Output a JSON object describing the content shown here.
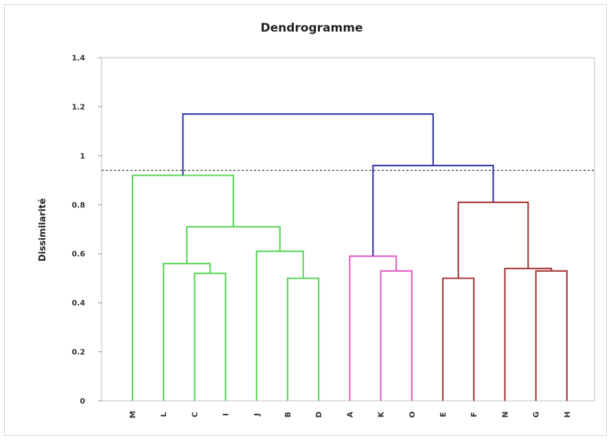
{
  "chart_data": {
    "type": "dendrogram",
    "title": "Dendrogramme",
    "ylabel": "Dissimilarité",
    "xlabel": "",
    "ylim": [
      0,
      1.4
    ],
    "yticks": [
      "0",
      "0.2",
      "0.4",
      "0.6",
      "0.8",
      "1",
      "1.2",
      "1.4"
    ],
    "grid": false,
    "leaves": [
      "M",
      "L",
      "C",
      "I",
      "J",
      "B",
      "D",
      "A",
      "K",
      "O",
      "E",
      "F",
      "N",
      "G",
      "H"
    ],
    "cut_height": 0.94,
    "colors": {
      "cluster_1": "#5ad65a",
      "cluster_2": "#e060c8",
      "cluster_3": "#a83a3a",
      "top": "#3a3aa8"
    },
    "merges": [
      {
        "left": "C",
        "right": "I",
        "height": 0.52,
        "color": "cluster_1"
      },
      {
        "left": "B",
        "right": "D",
        "height": 0.5,
        "color": "cluster_1"
      },
      {
        "left": "L",
        "right": "C+I",
        "height": 0.56,
        "color": "cluster_1"
      },
      {
        "left": "J",
        "right": "B+D",
        "height": 0.61,
        "color": "cluster_1"
      },
      {
        "left": "L+C+I",
        "right": "J+B+D",
        "height": 0.71,
        "color": "cluster_1"
      },
      {
        "left": "M",
        "right": "L+C+I+J+B+D",
        "height": 0.92,
        "color": "cluster_1"
      },
      {
        "left": "K",
        "right": "O",
        "height": 0.53,
        "color": "cluster_2"
      },
      {
        "left": "A",
        "right": "K+O",
        "height": 0.59,
        "color": "cluster_2"
      },
      {
        "left": "E",
        "right": "F",
        "height": 0.5,
        "color": "cluster_3"
      },
      {
        "left": "G",
        "right": "H",
        "height": 0.53,
        "color": "cluster_3"
      },
      {
        "left": "N",
        "right": "G+H",
        "height": 0.54,
        "color": "cluster_3"
      },
      {
        "left": "E+F",
        "right": "N+G+H",
        "height": 0.81,
        "color": "cluster_3"
      },
      {
        "left": "A+K+O",
        "right": "E+F+N+G+H",
        "height": 0.96,
        "color": "top"
      },
      {
        "left": "M+L+C+I+J+B+D",
        "right": "A+K+O+E+F+N+G+H",
        "height": 1.17,
        "color": "top"
      }
    ]
  }
}
